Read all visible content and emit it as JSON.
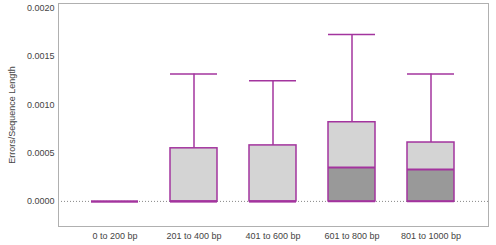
{
  "chart_data": {
    "type": "box",
    "y_label": "Errors/Sequence Length",
    "categories": [
      "0 to 200 bp",
      "201 to 400 bp",
      "401 to 600 bp",
      "601 to 800 bp",
      "801 to 1000 bp"
    ],
    "min": [
      0,
      0,
      0,
      0,
      0
    ],
    "q1": [
      0,
      0,
      0,
      0,
      0
    ],
    "median": [
      0,
      0,
      0,
      0.00035,
      0.00033
    ],
    "q3": [
      0,
      0.00055,
      0.00058,
      0.00082,
      0.00061
    ],
    "max": [
      0,
      0.00132,
      0.00125,
      0.00173,
      0.00132
    ],
    "color": "#a3349e",
    "ylim": [
      -0.00026,
      0.00205
    ],
    "yticks": [
      {
        "value": 0,
        "label": "0.0000"
      },
      {
        "value": 0.0005,
        "label": "0.0005"
      },
      {
        "value": 0.001,
        "label": "0.0010"
      },
      {
        "value": 0.0015,
        "label": "0.0015"
      },
      {
        "value": 0.002,
        "label": "0.0020"
      }
    ],
    "grid": false
  }
}
